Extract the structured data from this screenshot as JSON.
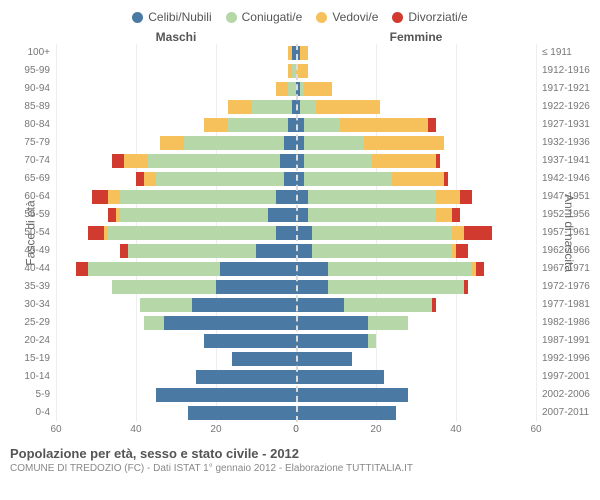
{
  "legend": [
    {
      "label": "Celibi/Nubili",
      "color": "#4a7aa4"
    },
    {
      "label": "Coniugati/e",
      "color": "#b6d7a8"
    },
    {
      "label": "Vedovi/e",
      "color": "#f6c15b"
    },
    {
      "label": "Divorziati/e",
      "color": "#d03a2f"
    }
  ],
  "headers": {
    "male": "Maschi",
    "female": "Femmine"
  },
  "left_axis_title": "Fasce di età",
  "right_axis_title": "Anni di nascita",
  "x_max": 60,
  "x_ticks": [
    0,
    20,
    40,
    60
  ],
  "age_labels": [
    "0-4",
    "5-9",
    "10-14",
    "15-19",
    "20-24",
    "25-29",
    "30-34",
    "35-39",
    "40-44",
    "45-49",
    "50-54",
    "55-59",
    "60-64",
    "65-69",
    "70-74",
    "75-79",
    "80-84",
    "85-89",
    "90-94",
    "95-99",
    "100+"
  ],
  "year_labels": [
    "2007-2011",
    "2002-2006",
    "1997-2001",
    "1992-1996",
    "1987-1991",
    "1982-1986",
    "1977-1981",
    "1972-1976",
    "1967-1971",
    "1962-1966",
    "1957-1961",
    "1952-1956",
    "1947-1951",
    "1942-1946",
    "1937-1941",
    "1932-1936",
    "1927-1931",
    "1922-1926",
    "1917-1921",
    "1912-1916",
    "≤ 1911"
  ],
  "male": [
    {
      "c": 27,
      "m": 0,
      "w": 0,
      "d": 0
    },
    {
      "c": 35,
      "m": 0,
      "w": 0,
      "d": 0
    },
    {
      "c": 25,
      "m": 0,
      "w": 0,
      "d": 0
    },
    {
      "c": 16,
      "m": 0,
      "w": 0,
      "d": 0
    },
    {
      "c": 23,
      "m": 0,
      "w": 0,
      "d": 0
    },
    {
      "c": 33,
      "m": 5,
      "w": 0,
      "d": 0
    },
    {
      "c": 26,
      "m": 13,
      "w": 0,
      "d": 0
    },
    {
      "c": 20,
      "m": 26,
      "w": 0,
      "d": 0
    },
    {
      "c": 19,
      "m": 33,
      "w": 0,
      "d": 3
    },
    {
      "c": 10,
      "m": 32,
      "w": 0,
      "d": 2
    },
    {
      "c": 5,
      "m": 42,
      "w": 1,
      "d": 4
    },
    {
      "c": 7,
      "m": 37,
      "w": 1,
      "d": 2
    },
    {
      "c": 5,
      "m": 39,
      "w": 3,
      "d": 4
    },
    {
      "c": 3,
      "m": 32,
      "w": 3,
      "d": 2
    },
    {
      "c": 4,
      "m": 33,
      "w": 6,
      "d": 3
    },
    {
      "c": 3,
      "m": 25,
      "w": 6,
      "d": 0
    },
    {
      "c": 2,
      "m": 15,
      "w": 6,
      "d": 0
    },
    {
      "c": 1,
      "m": 10,
      "w": 6,
      "d": 0
    },
    {
      "c": 0,
      "m": 2,
      "w": 3,
      "d": 0
    },
    {
      "c": 0,
      "m": 1,
      "w": 1,
      "d": 0
    },
    {
      "c": 1,
      "m": 0,
      "w": 1,
      "d": 0
    }
  ],
  "female": [
    {
      "c": 25,
      "m": 0,
      "w": 0,
      "d": 0
    },
    {
      "c": 28,
      "m": 0,
      "w": 0,
      "d": 0
    },
    {
      "c": 22,
      "m": 0,
      "w": 0,
      "d": 0
    },
    {
      "c": 14,
      "m": 0,
      "w": 0,
      "d": 0
    },
    {
      "c": 18,
      "m": 2,
      "w": 0,
      "d": 0
    },
    {
      "c": 18,
      "m": 10,
      "w": 0,
      "d": 0
    },
    {
      "c": 12,
      "m": 22,
      "w": 0,
      "d": 1
    },
    {
      "c": 8,
      "m": 34,
      "w": 0,
      "d": 1
    },
    {
      "c": 8,
      "m": 36,
      "w": 1,
      "d": 2
    },
    {
      "c": 4,
      "m": 35,
      "w": 1,
      "d": 3
    },
    {
      "c": 4,
      "m": 35,
      "w": 3,
      "d": 7
    },
    {
      "c": 3,
      "m": 32,
      "w": 4,
      "d": 2
    },
    {
      "c": 3,
      "m": 32,
      "w": 6,
      "d": 3
    },
    {
      "c": 2,
      "m": 22,
      "w": 13,
      "d": 1
    },
    {
      "c": 2,
      "m": 17,
      "w": 16,
      "d": 1
    },
    {
      "c": 2,
      "m": 15,
      "w": 20,
      "d": 0
    },
    {
      "c": 2,
      "m": 9,
      "w": 22,
      "d": 2
    },
    {
      "c": 1,
      "m": 4,
      "w": 16,
      "d": 0
    },
    {
      "c": 1,
      "m": 1,
      "w": 7,
      "d": 0
    },
    {
      "c": 0,
      "m": 0,
      "w": 3,
      "d": 0
    },
    {
      "c": 1,
      "m": 0,
      "w": 2,
      "d": 0
    }
  ],
  "title": "Popolazione per età, sesso e stato civile - 2012",
  "subtitle": "COMUNE DI TREDOZIO (FC) - Dati ISTAT 1° gennaio 2012 - Elaborazione TUTTITALIA.IT",
  "colors": {
    "celibi": "#4a7aa4",
    "coniugati": "#b6d7a8",
    "vedovi": "#f6c15b",
    "divorziati": "#d03a2f",
    "grid": "#eeeeee",
    "center": "#dcdcdc"
  }
}
